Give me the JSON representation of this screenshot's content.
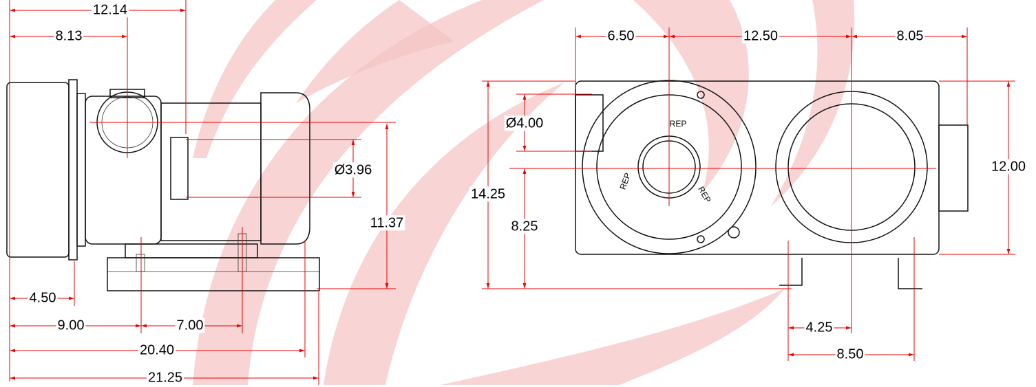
{
  "dimensions": [
    "12.14",
    "8.13",
    "Ø3.96",
    "11.37",
    "4.50",
    "9.00",
    "7.00",
    "20.40",
    "21.25",
    "6.50",
    "12.50",
    "8.05",
    "Ø4.00",
    "14.25",
    "8.25",
    "12.00",
    "4.25",
    "8.50"
  ],
  "impeller_marks": [
    "REP",
    "REP",
    "REP"
  ]
}
